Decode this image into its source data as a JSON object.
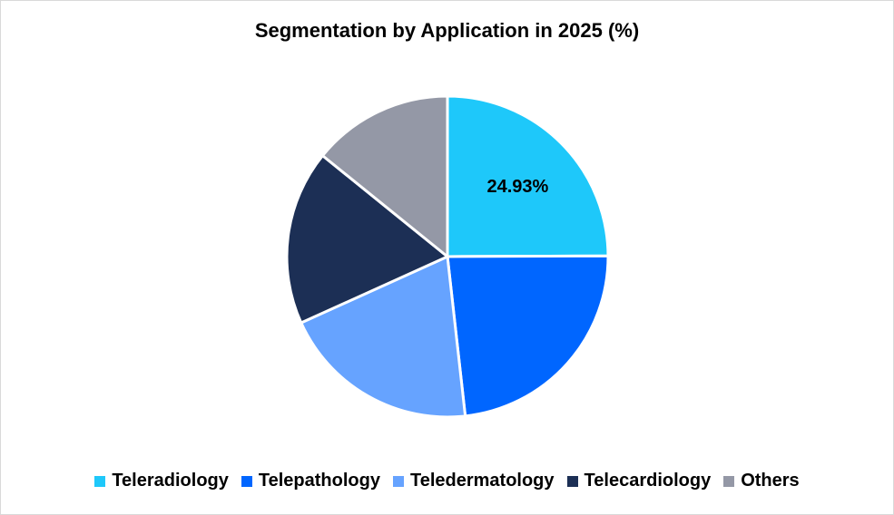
{
  "chart_data": {
    "type": "pie",
    "title": "Segmentation by Application in 2025 (%)",
    "categories": [
      "Teleradiology",
      "Telepathology",
      "Teledermatology",
      "Telecardiology",
      "Others"
    ],
    "values": [
      24.93,
      23.3,
      20.0,
      17.6,
      14.17
    ],
    "data_labels": [
      "24.93%",
      "",
      "",
      "",
      ""
    ],
    "colors": [
      "#1EC8FA",
      "#0066FF",
      "#66A3FF",
      "#1C2F55",
      "#9498A6"
    ],
    "legend_position": "bottom",
    "start_angle": "12 o'clock, clockwise"
  }
}
